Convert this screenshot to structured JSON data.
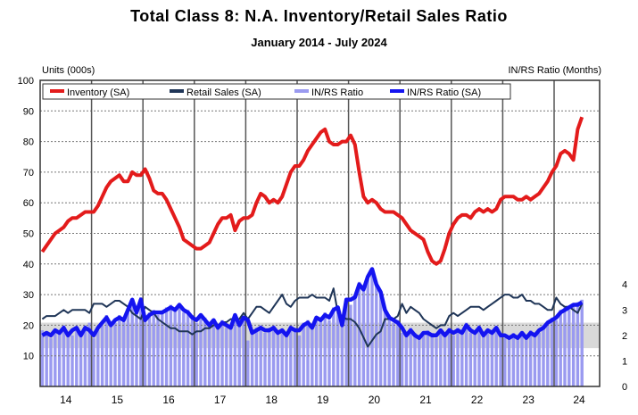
{
  "chart_data": {
    "type": "line",
    "title": "Total Class 8: N.A. Inventory/Retail Sales Ratio",
    "subtitle": "January 2014 - July 2024",
    "ylabel_left": "Units (000s)",
    "ylabel_right": "IN/RS Ratio (Months)",
    "ylim_left": [
      0,
      100
    ],
    "yticks_left": [
      10,
      20,
      30,
      40,
      50,
      60,
      70,
      80,
      90,
      100
    ],
    "ylim_right": [
      0,
      12
    ],
    "yticks_right": [
      0,
      1,
      2,
      3,
      4
    ],
    "xticks": [
      "14",
      "15",
      "16",
      "17",
      "18",
      "19",
      "20",
      "21",
      "22",
      "23",
      "24"
    ],
    "x_start": "2014-01",
    "x_end": "2024-07",
    "frequency": "monthly",
    "grid": true,
    "legend_placement": "top-left",
    "shaded_band_right_axis": [
      1.5,
      2.5
    ],
    "colors": {
      "inventory": "#e31b1b",
      "retail": "#1f3557",
      "ratio_bars": "#9a9af0",
      "ratio_sa": "#1414f0",
      "band": "#d9d9d9"
    },
    "series": [
      {
        "name": "Inventory (SA)",
        "axis": "left",
        "kind": "line",
        "values": [
          44,
          46,
          48,
          50,
          51,
          52,
          54,
          55,
          55,
          56,
          57,
          57,
          57,
          59,
          62,
          65,
          67,
          68,
          69,
          67,
          67,
          70,
          69,
          69,
          71,
          68,
          64,
          63,
          63,
          61,
          58,
          55,
          52,
          48,
          47,
          46,
          45,
          45,
          46,
          47,
          50,
          53,
          55,
          55,
          56,
          51,
          54,
          55,
          55,
          56,
          60,
          63,
          62,
          60,
          61,
          60,
          62,
          66,
          70,
          72,
          72,
          74,
          77,
          79,
          81,
          83,
          84,
          80,
          79,
          79,
          80,
          80,
          82,
          79,
          70,
          62,
          60,
          61,
          60,
          58,
          57,
          57,
          57,
          56,
          55,
          53,
          51,
          50,
          49,
          48,
          44,
          41,
          40,
          41,
          45,
          50,
          53,
          55,
          56,
          56,
          55,
          57,
          58,
          57,
          58,
          57,
          58,
          61,
          62,
          62,
          62,
          61,
          61,
          62,
          61,
          62,
          63,
          65,
          67,
          70,
          72,
          76,
          77,
          76,
          74,
          84,
          88
        ]
      },
      {
        "name": "Retail Sales (SA)",
        "axis": "left",
        "kind": "line",
        "values": [
          22,
          23,
          23,
          23,
          24,
          25,
          24,
          25,
          25,
          25,
          25,
          24,
          27,
          27,
          27,
          26,
          27,
          28,
          28,
          27,
          26,
          24,
          23,
          22,
          26,
          25,
          24,
          22,
          21,
          20,
          19,
          19,
          18,
          18,
          18,
          17,
          18,
          18,
          19,
          19,
          20,
          20,
          21,
          21,
          22,
          22,
          22,
          24,
          22,
          24,
          26,
          26,
          25,
          24,
          26,
          28,
          30,
          27,
          26,
          28,
          29,
          29,
          29,
          30,
          29,
          29,
          29,
          28,
          32,
          24,
          23,
          22,
          22,
          21,
          19,
          16,
          13,
          15,
          17,
          18,
          22,
          22,
          22,
          23,
          27,
          24,
          26,
          25,
          24,
          22,
          21,
          20,
          19,
          20,
          20,
          23,
          24,
          23,
          24,
          25,
          26,
          26,
          26,
          25,
          26,
          27,
          28,
          29,
          30,
          30,
          29,
          29,
          30,
          28,
          28,
          27,
          27,
          26,
          25,
          25,
          29,
          27,
          26,
          26,
          25,
          24,
          27
        ]
      },
      {
        "name": "IN/RS Ratio",
        "axis": "right",
        "kind": "bar",
        "values": [
          2.2,
          2.1,
          1.9,
          2.1,
          2.2,
          2.4,
          2.1,
          2.0,
          2.2,
          2.1,
          2.4,
          2.5,
          1.9,
          2.2,
          2.4,
          2.8,
          2.5,
          2.5,
          2.8,
          2.7,
          2.9,
          3.3,
          3.0,
          3.5,
          2.7,
          2.9,
          3.0,
          2.8,
          2.9,
          3.1,
          3.2,
          3.0,
          3.1,
          2.9,
          3.0,
          2.8,
          2.5,
          2.7,
          2.7,
          2.5,
          2.5,
          2.4,
          2.6,
          2.3,
          2.4,
          2.7,
          2.5,
          2.6,
          1.8,
          2.2,
          2.3,
          2.4,
          2.1,
          2.3,
          2.4,
          2.2,
          2.1,
          2.1,
          2.4,
          2.3,
          2.0,
          2.5,
          2.6,
          2.4,
          2.6,
          2.7,
          2.9,
          2.6,
          3.1,
          3.0,
          2.5,
          3.3,
          3.2,
          3.6,
          4.1,
          3.9,
          4.2,
          4.5,
          4.1,
          3.6,
          3.1,
          2.8,
          2.5,
          2.6,
          2.1,
          2.1,
          2.3,
          2.1,
          1.9,
          2.0,
          2.2,
          2.1,
          1.9,
          2.1,
          2.1,
          2.3,
          2.0,
          2.3,
          2.2,
          2.5,
          2.1,
          2.2,
          2.4,
          2.1,
          2.1,
          2.2,
          2.2,
          2.1,
          1.9,
          2.0,
          2.1,
          1.9,
          2.0,
          2.0,
          2.2,
          2.1,
          2.1,
          2.4,
          2.5,
          2.7,
          2.6,
          3.0,
          3.1,
          3.0,
          3.2,
          3.3,
          3.4
        ]
      },
      {
        "name": "IN/RS Ratio (SA)",
        "axis": "right",
        "kind": "line",
        "values": [
          2.0,
          2.1,
          2.0,
          2.2,
          2.1,
          2.3,
          2.0,
          2.2,
          2.3,
          2.0,
          2.3,
          2.2,
          2.0,
          2.3,
          2.5,
          2.7,
          2.4,
          2.6,
          2.7,
          2.6,
          3.0,
          3.4,
          2.9,
          3.4,
          2.6,
          2.8,
          2.9,
          2.9,
          2.9,
          3.0,
          3.1,
          3.0,
          3.2,
          3.0,
          2.9,
          2.7,
          2.6,
          2.8,
          2.6,
          2.4,
          2.6,
          2.3,
          2.5,
          2.4,
          2.3,
          2.8,
          2.4,
          2.7,
          2.6,
          2.1,
          2.2,
          2.3,
          2.2,
          2.2,
          2.3,
          2.1,
          2.2,
          2.0,
          2.3,
          2.2,
          2.2,
          2.4,
          2.5,
          2.3,
          2.7,
          2.6,
          2.8,
          2.7,
          3.0,
          3.1,
          2.4,
          3.4,
          3.4,
          3.5,
          4.0,
          3.8,
          4.3,
          4.6,
          4.0,
          3.7,
          3.0,
          2.7,
          2.6,
          2.5,
          2.3,
          2.0,
          2.2,
          2.0,
          1.9,
          2.1,
          2.1,
          2.0,
          2.0,
          2.2,
          2.0,
          2.2,
          2.1,
          2.2,
          2.1,
          2.4,
          2.2,
          2.1,
          2.3,
          2.0,
          2.2,
          2.1,
          2.3,
          2.0,
          2.0,
          1.9,
          2.0,
          1.9,
          2.1,
          1.9,
          2.1,
          2.0,
          2.2,
          2.3,
          2.5,
          2.6,
          2.7,
          2.9,
          3.0,
          3.1,
          3.2,
          3.2,
          3.3
        ]
      }
    ]
  }
}
